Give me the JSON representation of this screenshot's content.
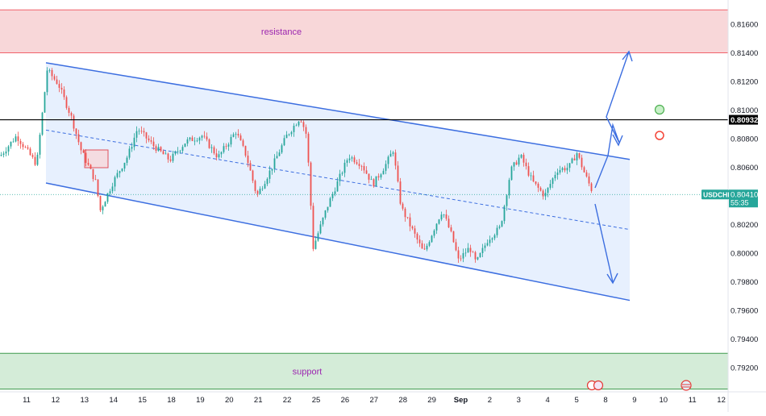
{
  "chart_data": {
    "type": "candlestick",
    "symbol": "USDCHF",
    "price_scale": {
      "ticks": [
        "0.81600",
        "0.81400",
        "0.81200",
        "0.81000",
        "0.80800",
        "0.80600",
        "0.80200",
        "0.80000",
        "0.79800",
        "0.79600",
        "0.79400",
        "0.79200"
      ],
      "ylim": [
        0.7912,
        0.8171
      ]
    },
    "time_axis": {
      "labels": [
        "11",
        "12",
        "13",
        "14",
        "15",
        "18",
        "19",
        "20",
        "21",
        "22",
        "25",
        "26",
        "27",
        "28",
        "29",
        "Sep",
        "2",
        "3",
        "4",
        "5",
        "8",
        "9",
        "10",
        "11",
        "12"
      ]
    },
    "zones": {
      "resistance": {
        "label": "resistance",
        "top": 0.817,
        "bottom": 0.814,
        "fill": "#f8d7d9",
        "stroke": "#f0606a"
      },
      "support": {
        "label": "support",
        "top": 0.793,
        "bottom": 0.7905,
        "fill": "#d4ecd8",
        "stroke": "#3e9a4d"
      }
    },
    "horizontal_line": {
      "value": 0.80932,
      "label": "0.80932",
      "color": "#000000"
    },
    "current_price": {
      "symbol": "USDCHF",
      "value": "0.80410",
      "countdown": "55:35",
      "line_value": 0.8041,
      "color": "#26a69a"
    },
    "channel": {
      "upper": {
        "start": [
          0,
          0.8133
        ],
        "end": [
          24,
          0.80655
        ]
      },
      "lower": {
        "start": [
          0,
          0.8049
        ],
        "end": [
          24,
          0.7967
        ]
      },
      "mid": {
        "start": [
          0,
          0.8086
        ],
        "end": [
          24,
          0.80165
        ]
      },
      "fill": "#ddeafe",
      "stroke": "#3c6ee0"
    },
    "bullish_color": "#26a69a",
    "bearish_color": "#ef5350",
    "projection_arrows": [
      {
        "from": [
          22.6,
          0.8043
        ],
        "to": [
          23.7,
          0.8138
        ]
      },
      {
        "from": [
          22.6,
          0.8035
        ],
        "to": [
          23.7,
          0.7983
        ]
      }
    ],
    "markers": [
      {
        "type": "circle",
        "x": 25.3,
        "y": 0.81005,
        "color": "#4caf50"
      },
      {
        "type": "circle",
        "x": 25.3,
        "y": 0.80835,
        "color": "#f44336"
      }
    ]
  }
}
